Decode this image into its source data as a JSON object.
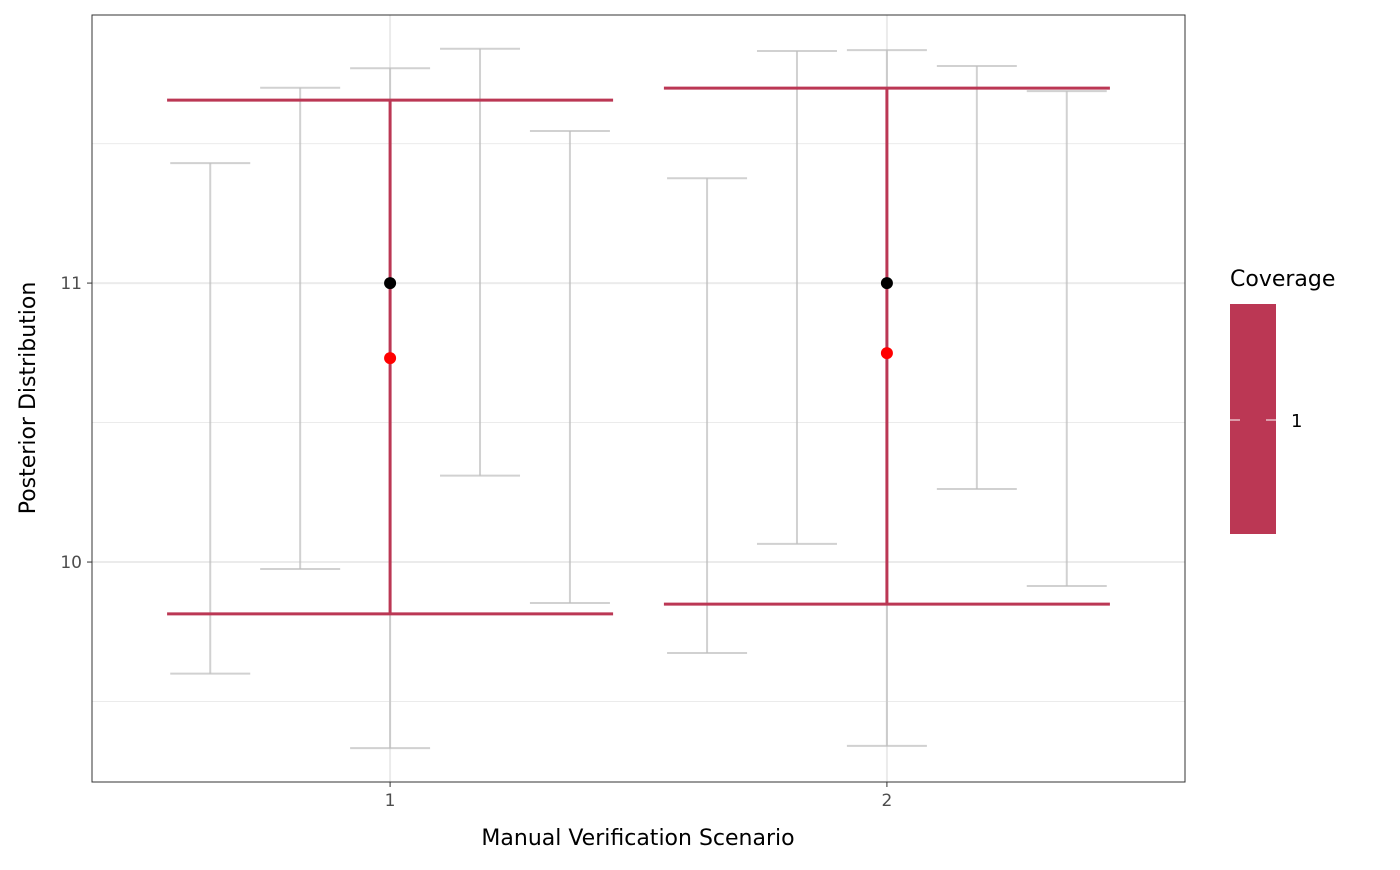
{
  "chart_data": {
    "type": "errorbar",
    "x_label": "Manual Verification Scenario",
    "y_label": "Posterior Distribution",
    "xlim": [
      0.4,
      2.6
    ],
    "ylim": [
      9.2115,
      11.961
    ],
    "xticks": [
      1,
      2
    ],
    "yticks": [
      10,
      11
    ],
    "minor_yticks": [
      9.5,
      10.5,
      11.5
    ],
    "grid": true,
    "draws": {
      "color": "#bdbdbd",
      "x": [
        0.638,
        0.819,
        1,
        1.181,
        1.362,
        1.638,
        1.819,
        2,
        2.181,
        2.362
      ],
      "lower": [
        9.6,
        9.975,
        9.333,
        10.31,
        9.853,
        9.674,
        10.065,
        9.341,
        10.262,
        9.914
      ],
      "upper": [
        11.43,
        11.7,
        11.77,
        11.84,
        11.545,
        11.376,
        11.832,
        11.835,
        11.778,
        11.688
      ]
    },
    "coverage": {
      "legend_title": "Coverage",
      "name": "1",
      "color": "#bb3754",
      "x": [
        1,
        2
      ],
      "lower": [
        9.814,
        9.849
      ],
      "upper": [
        11.656,
        11.699
      ]
    },
    "truth": {
      "color": "#000000",
      "x": [
        1,
        2
      ],
      "values": [
        11,
        11
      ]
    },
    "estimate": {
      "color": "#ff0000",
      "x": [
        1,
        2
      ],
      "values": [
        10.731,
        10.749
      ]
    }
  }
}
